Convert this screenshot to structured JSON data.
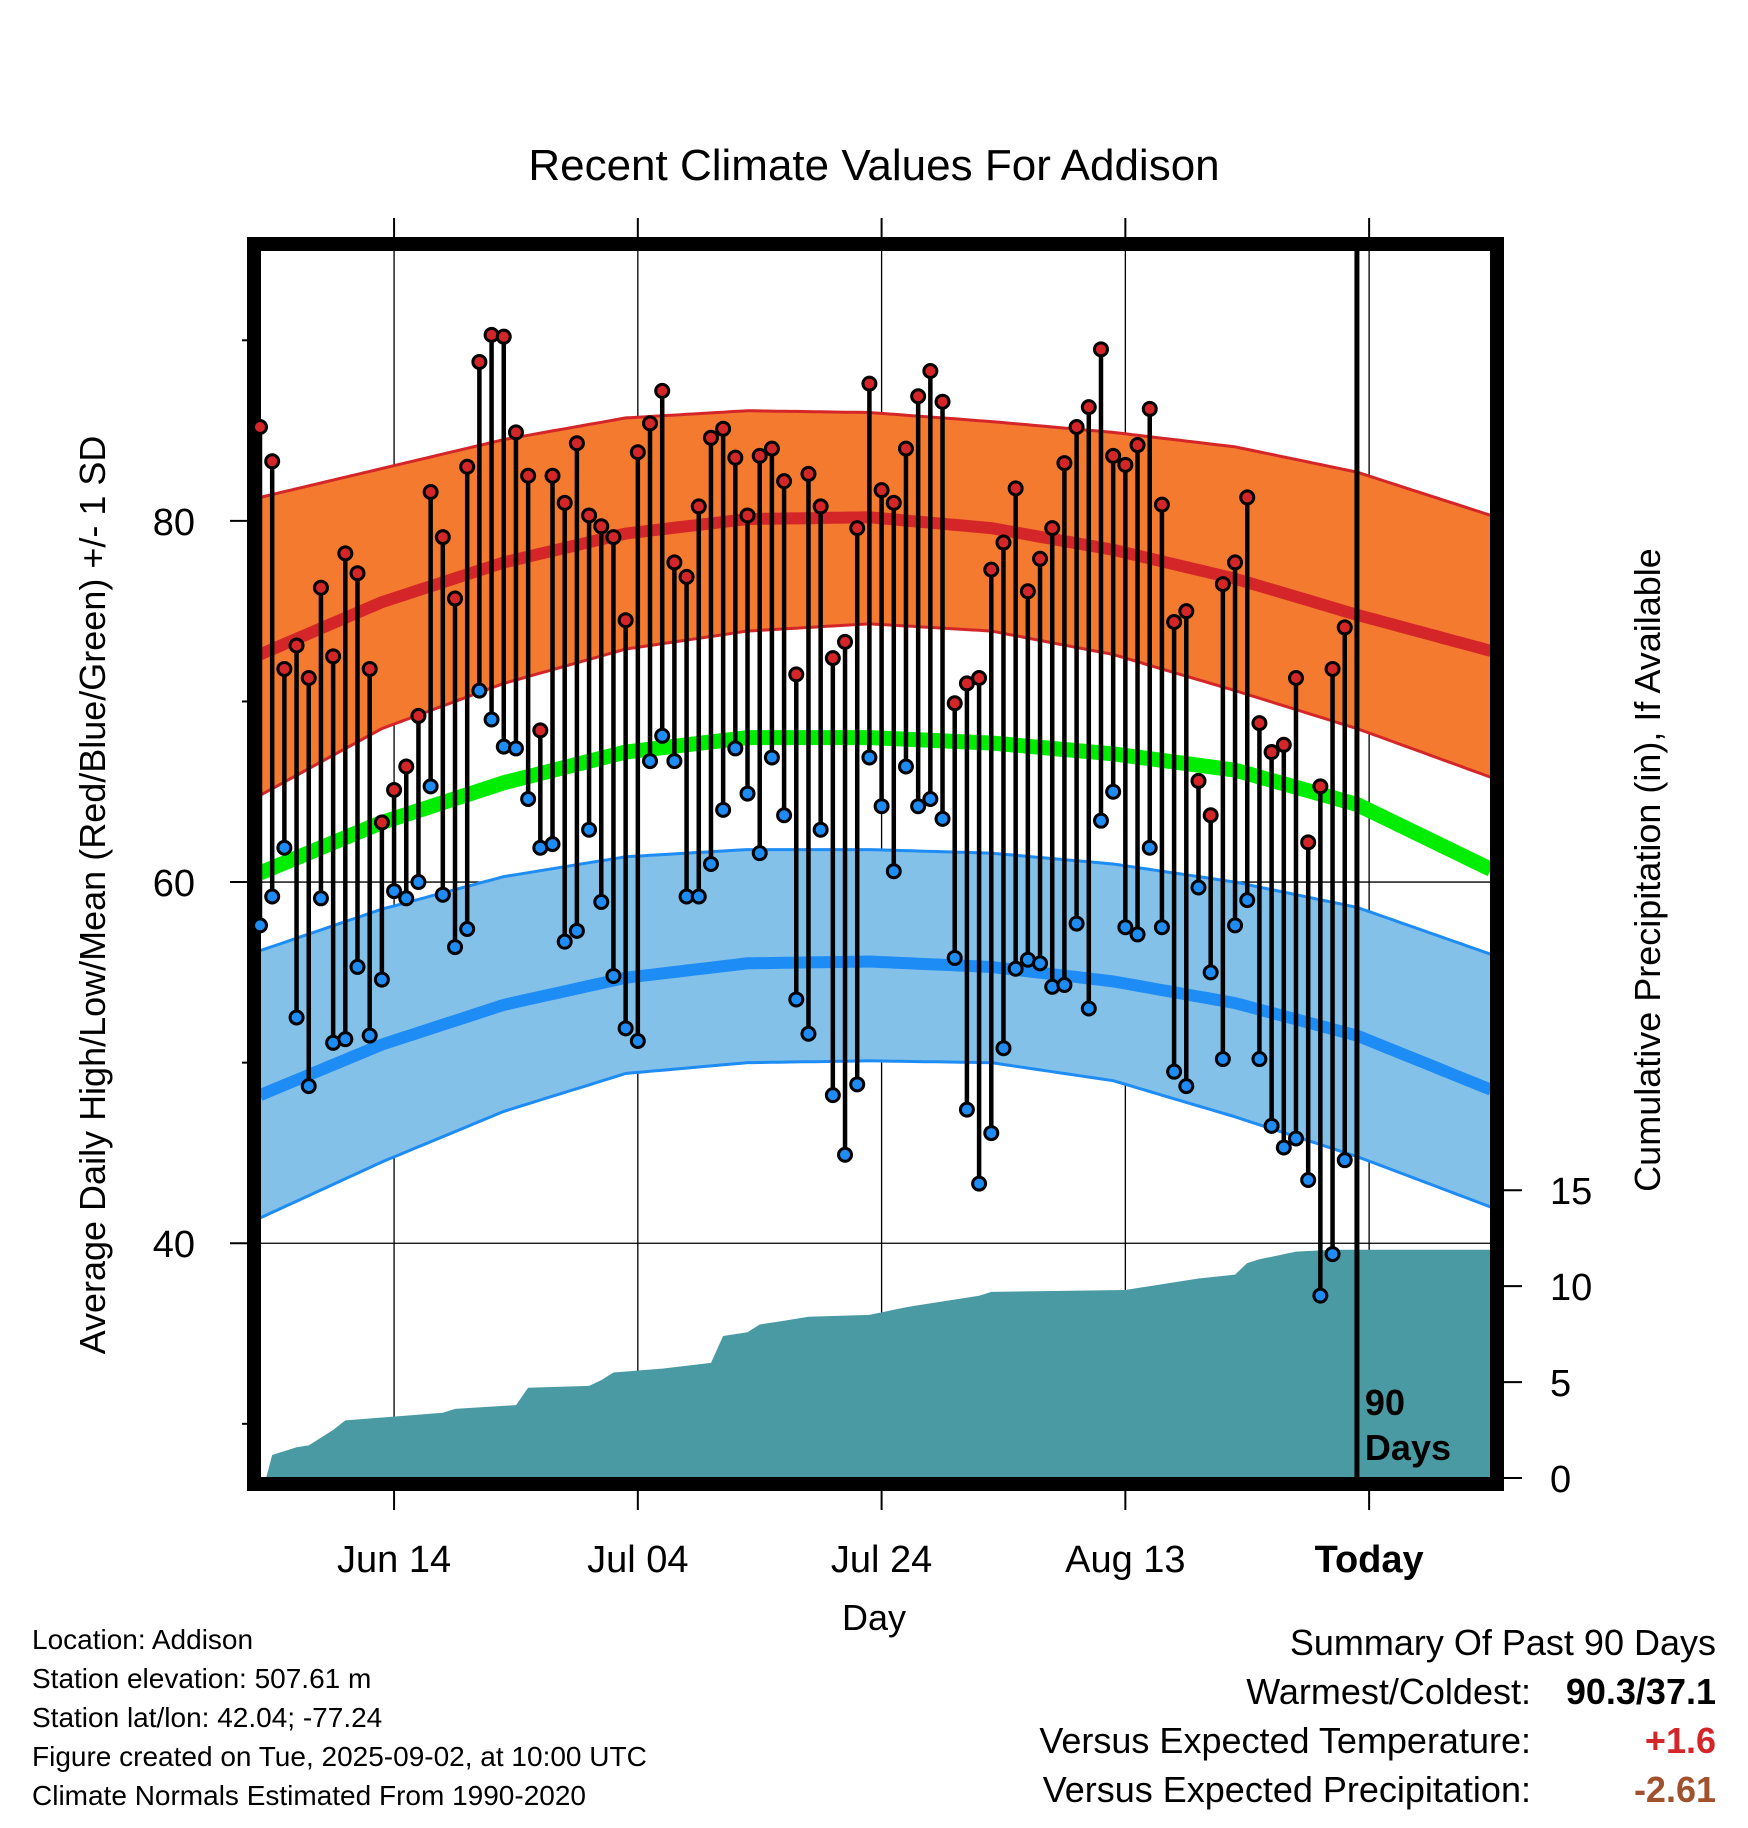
{
  "chart_data": {
    "type": "line",
    "title": "Recent Climate Values For Addison",
    "xlabel": "Day",
    "ylabel": "Average Daily High/Low/Mean (Red/Blue/Green) +/- 1 SD",
    "y2label": "Cumulative Precipitation (in), If Available",
    "x_ticks": [
      "Jun 14",
      "Jul 04",
      "Jul 24",
      "Aug 13",
      "Today"
    ],
    "x_tick_day_index": [
      11,
      31,
      51,
      71,
      91
    ],
    "x_range_day_index": [
      0,
      101
    ],
    "y_ticks": [
      40,
      60,
      80
    ],
    "ylim": [
      27,
      95
    ],
    "y2_ticks": [
      0,
      5,
      10,
      15
    ],
    "y2lim": [
      0,
      64
    ],
    "today_marker": {
      "day_index": 90,
      "label_line1": "90",
      "label_line2": "Days"
    },
    "grid": true,
    "colors": {
      "high_band": "#f47a30",
      "high_line": "#d42628",
      "low_band": "#84c1e8",
      "low_line": "#1e8cf5",
      "mean_line": "#00ed00",
      "precip": "#4a9aa4",
      "high_point": "#d42628",
      "low_point": "#1e8cf5"
    },
    "normals": {
      "days": [
        0,
        10,
        20,
        30,
        40,
        50,
        60,
        70,
        80,
        90,
        101
      ],
      "high_mean": [
        72.6,
        75.5,
        77.7,
        79.3,
        80.1,
        80.2,
        79.6,
        78.4,
        76.8,
        74.8,
        72.8
      ],
      "high_sd_upper": [
        81.3,
        82.9,
        84.5,
        85.7,
        86.1,
        86.0,
        85.5,
        84.9,
        84.1,
        82.7,
        80.3
      ],
      "high_sd_lower": [
        64.8,
        68.5,
        71.0,
        72.9,
        73.9,
        74.3,
        73.9,
        72.6,
        70.6,
        68.5,
        65.8
      ],
      "mean": [
        60.5,
        63.3,
        65.5,
        67.2,
        68.0,
        68.0,
        67.7,
        67.1,
        66.2,
        64.3,
        60.7
      ],
      "low_mean": [
        48.2,
        51.0,
        53.2,
        54.7,
        55.5,
        55.6,
        55.3,
        54.5,
        53.3,
        51.5,
        48.5
      ],
      "low_sd_upper": [
        56.2,
        58.5,
        60.3,
        61.4,
        61.8,
        61.8,
        61.6,
        61.0,
        60.0,
        58.6,
        56.0
      ],
      "low_sd_lower": [
        41.4,
        44.5,
        47.3,
        49.4,
        50.0,
        50.1,
        50.0,
        49.0,
        47.0,
        44.8,
        42.0
      ]
    },
    "series": [
      {
        "name": "Daily High",
        "values": [
          85.2,
          83.3,
          71.8,
          73.1,
          71.3,
          76.3,
          72.5,
          78.2,
          77.1,
          71.8,
          63.3,
          65.1,
          66.4,
          69.2,
          81.6,
          79.1,
          75.7,
          83.0,
          88.8,
          90.3,
          90.2,
          84.9,
          82.5,
          68.4,
          82.5,
          81.0,
          84.3,
          80.3,
          79.7,
          79.1,
          74.5,
          83.8,
          85.4,
          87.2,
          77.7,
          76.9,
          80.8,
          84.6,
          85.1,
          83.5,
          80.3,
          83.6,
          84.0,
          82.2,
          71.5,
          82.6,
          80.8,
          72.4,
          73.3,
          79.6,
          87.6,
          81.7,
          81.0,
          84.0,
          86.9,
          88.3,
          86.6,
          69.9,
          71.0,
          71.3,
          77.3,
          78.8,
          81.8,
          76.1,
          77.9,
          79.6,
          83.2,
          85.2,
          86.3,
          89.5,
          83.6,
          83.1,
          84.2,
          86.2,
          80.9,
          74.4,
          75.0,
          65.6,
          63.7,
          76.5,
          77.7,
          81.3,
          68.8,
          67.2,
          67.6,
          71.3,
          62.2,
          65.3,
          71.8,
          74.1
        ]
      },
      {
        "name": "Daily Low",
        "values": [
          57.6,
          59.2,
          61.9,
          52.5,
          48.7,
          59.1,
          51.1,
          51.3,
          55.3,
          51.5,
          54.6,
          59.5,
          59.1,
          60.0,
          65.3,
          59.3,
          56.4,
          57.4,
          70.6,
          69.0,
          67.5,
          67.4,
          64.6,
          61.9,
          62.1,
          56.7,
          57.3,
          62.9,
          58.9,
          54.8,
          51.9,
          51.2,
          66.7,
          68.1,
          66.7,
          59.2,
          59.2,
          61.0,
          64.0,
          67.4,
          64.9,
          61.6,
          66.9,
          63.7,
          53.5,
          51.6,
          62.9,
          48.2,
          44.9,
          48.8,
          66.9,
          64.2,
          60.6,
          66.4,
          64.2,
          64.6,
          63.5,
          55.8,
          47.4,
          43.3,
          46.1,
          50.8,
          55.2,
          55.7,
          55.5,
          54.2,
          54.3,
          57.7,
          53.0,
          63.4,
          65.0,
          57.5,
          57.1,
          61.9,
          57.5,
          49.5,
          48.7,
          59.7,
          55.0,
          50.2,
          57.6,
          59.0,
          50.2,
          46.5,
          45.3,
          45.8,
          43.5,
          37.1,
          39.4,
          44.6
        ]
      },
      {
        "name": "Cumulative Precipitation",
        "x": [
          0.5,
          1,
          3,
          4,
          6,
          7,
          9,
          15,
          16,
          21,
          22,
          27,
          28,
          29,
          33,
          37,
          38,
          40,
          41,
          43,
          44,
          45,
          50,
          53,
          54,
          59,
          60,
          71,
          74,
          77,
          80,
          81,
          82,
          85,
          88,
          101
        ],
        "values": [
          0,
          1.2,
          1.6,
          1.7,
          2.5,
          3.0,
          3.1,
          3.4,
          3.6,
          3.8,
          4.7,
          4.8,
          5.1,
          5.5,
          5.7,
          6.0,
          7.4,
          7.6,
          8.0,
          8.2,
          8.3,
          8.4,
          8.5,
          8.9,
          9.0,
          9.5,
          9.7,
          9.8,
          10.1,
          10.4,
          10.6,
          11.2,
          11.4,
          11.8,
          11.9,
          11.9
        ]
      }
    ]
  },
  "info": {
    "location": "Location: Addison",
    "elevation": "Station elevation: 507.61 m",
    "latlon": "Station lat/lon: 42.04; -77.24",
    "created": "Figure created on Tue, 2025-09-02, at 10:00 UTC",
    "normals": "Climate Normals Estimated From 1990-2020"
  },
  "summary": {
    "heading": "Summary Of Past 90 Days",
    "warmest_label": "Warmest/Coldest:",
    "warmest_value": "90.3/37.1",
    "temp_label": "Versus Expected Temperature:",
    "temp_value": "+1.6",
    "temp_color": "#d42628",
    "precip_label": "Versus Expected Precipitation:",
    "precip_value": "-2.61",
    "precip_color": "#a0522d"
  }
}
